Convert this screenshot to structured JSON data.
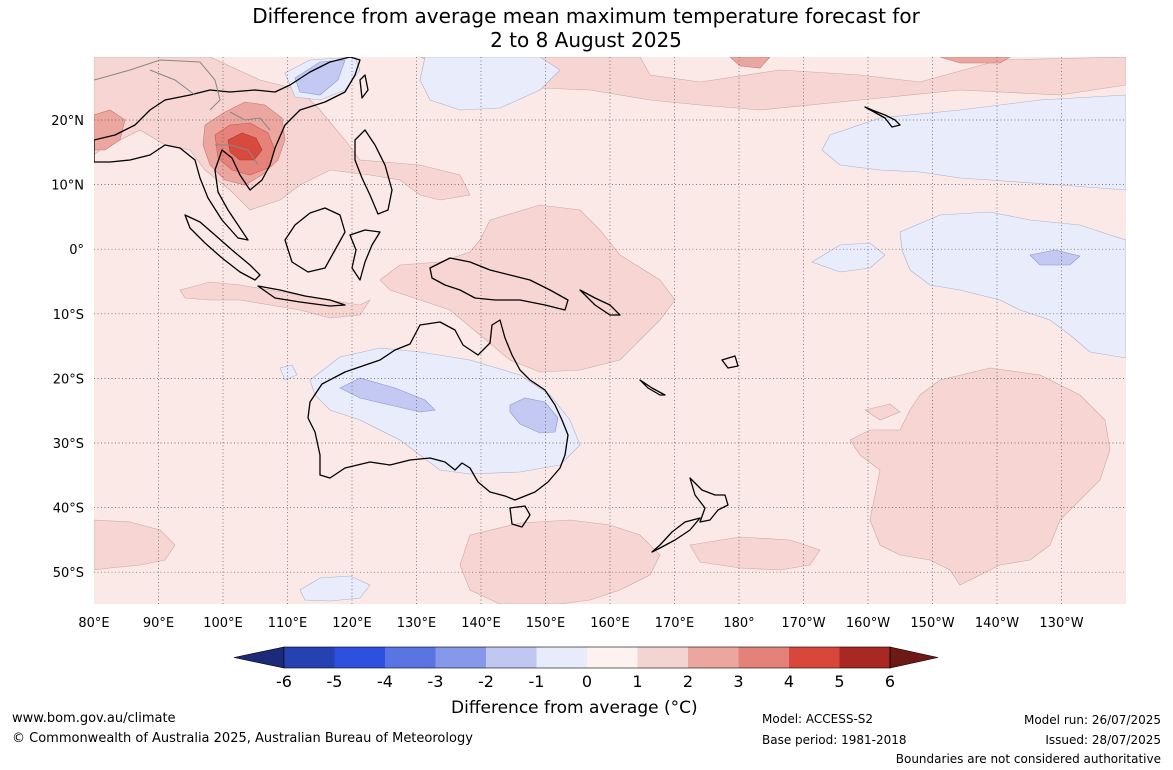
{
  "title": {
    "line1": "Difference from average mean maximum temperature forecast for",
    "line2": "2 to 8 August 2025"
  },
  "map": {
    "latitude_labels": [
      "20°N",
      "10°N",
      "0°",
      "10°S",
      "20°S",
      "30°S",
      "40°S",
      "50°S"
    ],
    "longitude_labels": [
      "80°E",
      "90°E",
      "100°E",
      "110°E",
      "120°E",
      "130°E",
      "140°E",
      "150°E",
      "160°E",
      "170°E",
      "180°",
      "170°W",
      "160°W",
      "150°W",
      "140°W",
      "130°W"
    ],
    "colors": {
      "ocean_base": "#fbe9e7",
      "anomaly_plus_1_2": "#f6d5d2",
      "anomaly_plus_2_3": "#eaa69f",
      "anomaly_plus_3_4": "#e6827a",
      "anomaly_plus_4_5": "#d94a3e",
      "anomaly_minus_0_1": "#e8ecfb",
      "anomaly_minus_1_2": "#c3c9f3",
      "coastline": "#000000",
      "gridline": "#555555"
    }
  },
  "colorbar": {
    "tick_labels": [
      "-6",
      "-5",
      "-4",
      "-3",
      "-2",
      "-1",
      "0",
      "1",
      "2",
      "3",
      "4",
      "5",
      "6"
    ],
    "colors": [
      "#1c2a7a",
      "#2541b2",
      "#2e50de",
      "#5a74e4",
      "#8598e9",
      "#c0c7f1",
      "#e8ebfa",
      "#fdf2f0",
      "#f4d4d1",
      "#eaa69f",
      "#e4827a",
      "#d9473b",
      "#a82921",
      "#6d1a15"
    ],
    "label": "Difference from average (°C)"
  },
  "footer": {
    "website": "www.bom.gov.au/climate",
    "copyright": "© Commonwealth of Australia 2025, Australian Bureau of Meteorology",
    "model": "Model: ACCESS-S2",
    "base_period": "Base period: 1981-2018",
    "model_run": "Model run: 26/07/2025",
    "issued": "Issued: 28/07/2025",
    "disclaimer": "Boundaries are not considered authoritative"
  }
}
